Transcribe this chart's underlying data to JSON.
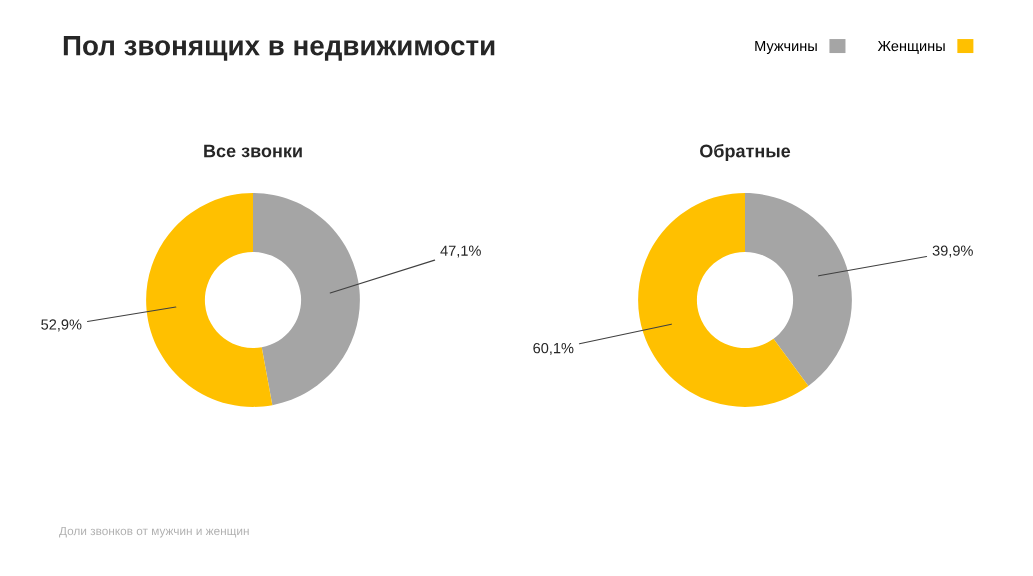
{
  "chart_data": [
    {
      "type": "other",
      "title": "Пол звонящих в недвижимости",
      "annotations": [
        "Доли звонков от мужчин и женщин"
      ]
    },
    {
      "type": "donut",
      "title": "Все звонки",
      "categories": [
        "Мужчины",
        "Женщины"
      ],
      "values": [
        47.1,
        52.9
      ],
      "colors": [
        "#a5a5a5",
        "#ffc000"
      ],
      "value_labels": [
        "47,1%",
        "52,9%"
      ],
      "legend": "top right"
    },
    {
      "type": "donut",
      "title": "Обратные",
      "categories": [
        null,
        null
      ],
      "values": [
        39.9,
        60.1
      ],
      "colors": [
        "#a5a5a5",
        "#ffc000"
      ],
      "value_labels": [
        "39,9%",
        "60,1%"
      ]
    }
  ]
}
